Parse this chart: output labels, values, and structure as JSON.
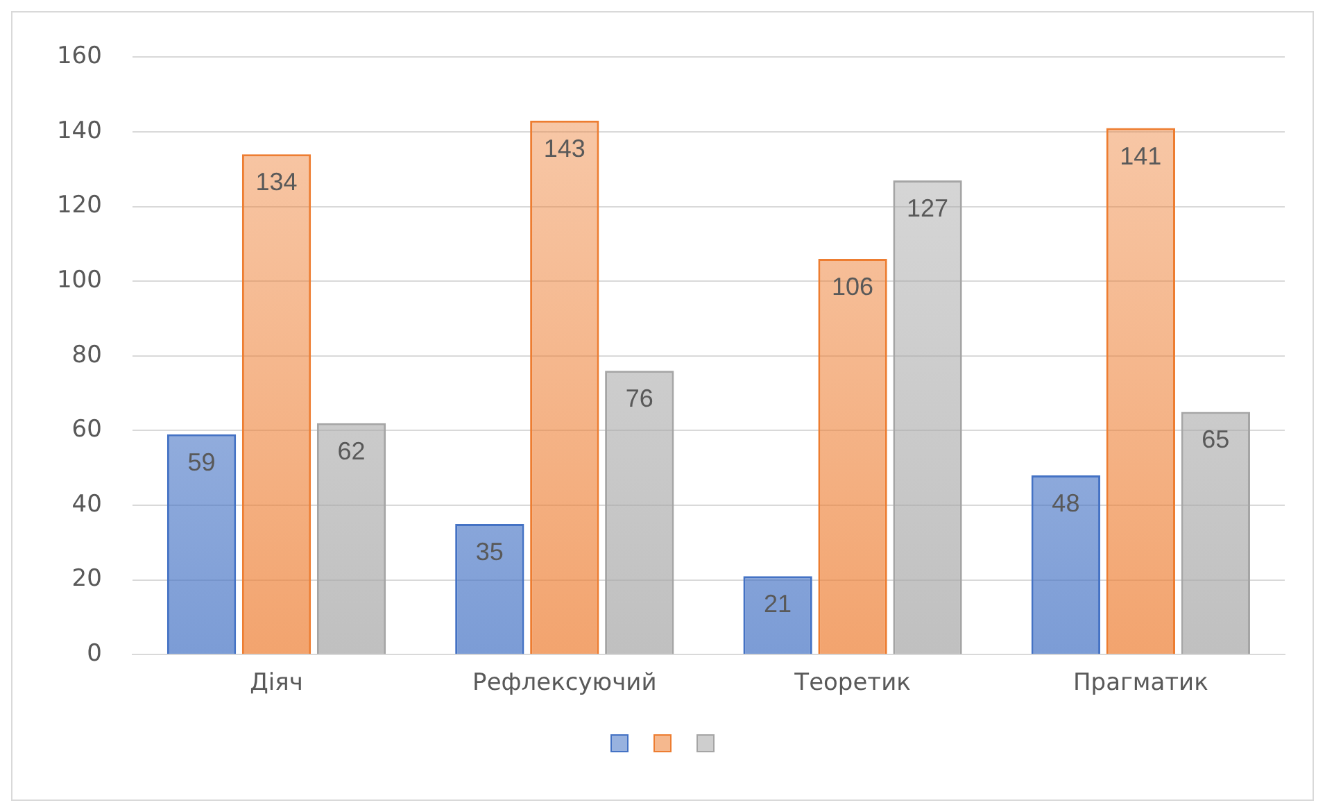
{
  "chart_data": {
    "type": "bar",
    "categories": [
      "Діяч",
      "Рефлексуючий",
      "Теоретик",
      "Прагматик"
    ],
    "series": [
      {
        "color": "#4472c4",
        "values": [
          59,
          35,
          21,
          48
        ]
      },
      {
        "color": "#ed7d31",
        "values": [
          134,
          143,
          106,
          141
        ]
      },
      {
        "color": "#a5a5a5",
        "values": [
          62,
          76,
          127,
          65
        ]
      }
    ],
    "ylim": [
      0,
      160
    ],
    "yticks": [
      0,
      20,
      40,
      60,
      80,
      100,
      120,
      140,
      160
    ],
    "grid": "y",
    "data_labels": true
  }
}
